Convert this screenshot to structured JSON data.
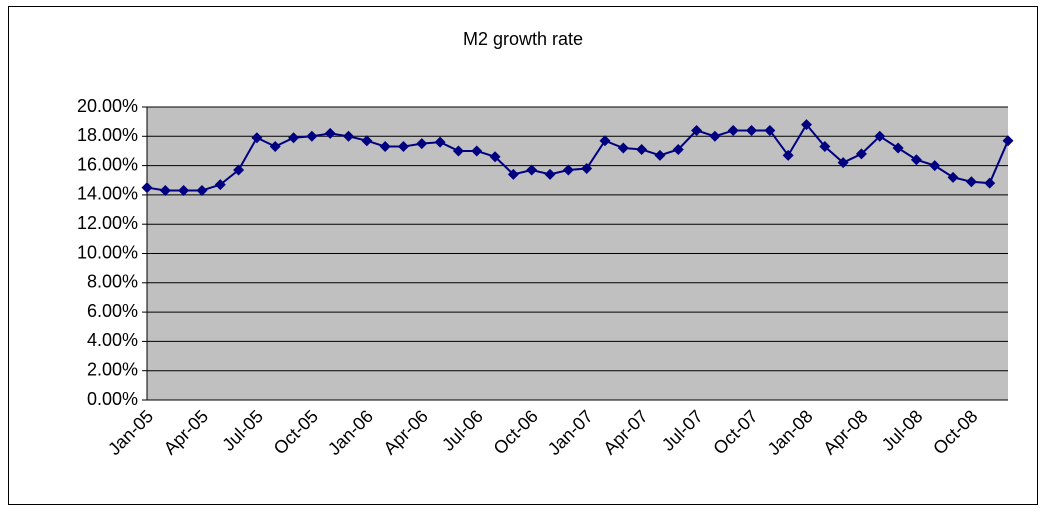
{
  "chart_data": {
    "type": "line",
    "title": "M2 growth rate",
    "categories": [
      "Jan-05",
      null,
      null,
      "Apr-05",
      null,
      null,
      "Jul-05",
      null,
      null,
      "Oct-05",
      null,
      null,
      "Jan-06",
      null,
      null,
      "Apr-06",
      null,
      null,
      "Jul-06",
      null,
      null,
      "Oct-06",
      null,
      null,
      "Jan-07",
      null,
      null,
      "Apr-07",
      null,
      null,
      "Jul-07",
      null,
      null,
      "Oct-07",
      null,
      null,
      "Jan-08",
      null,
      null,
      "Apr-08",
      null,
      null,
      "Jul-08",
      null,
      null,
      "Oct-08",
      null,
      null
    ],
    "values": [
      14.5,
      14.3,
      14.3,
      14.3,
      14.7,
      15.7,
      17.9,
      17.3,
      17.9,
      18.0,
      18.2,
      18.0,
      17.7,
      17.3,
      17.3,
      17.5,
      17.6,
      17.0,
      17.0,
      16.6,
      15.4,
      15.7,
      15.4,
      15.7,
      15.8,
      17.7,
      17.2,
      17.1,
      16.7,
      17.1,
      18.4,
      18.0,
      18.4,
      18.4,
      18.4,
      16.7,
      18.8,
      17.3,
      16.2,
      16.8,
      18.0,
      17.2,
      16.4,
      16.0,
      15.2,
      14.9,
      14.8,
      17.7
    ],
    "color": "#000080",
    "ylim": [
      0,
      20
    ],
    "yticks": [
      {
        "value": 0,
        "label": "0.00%"
      },
      {
        "value": 2,
        "label": "2.00%"
      },
      {
        "value": 4,
        "label": "4.00%"
      },
      {
        "value": 6,
        "label": "6.00%"
      },
      {
        "value": 8,
        "label": "8.00%"
      },
      {
        "value": 10,
        "label": "10.00%"
      },
      {
        "value": 12,
        "label": "12.00%"
      },
      {
        "value": 14,
        "label": "14.00%"
      },
      {
        "value": 16,
        "label": "16.00%"
      },
      {
        "value": 18,
        "label": "18.00%"
      },
      {
        "value": 20,
        "label": "20.00%"
      }
    ],
    "grid": true
  }
}
